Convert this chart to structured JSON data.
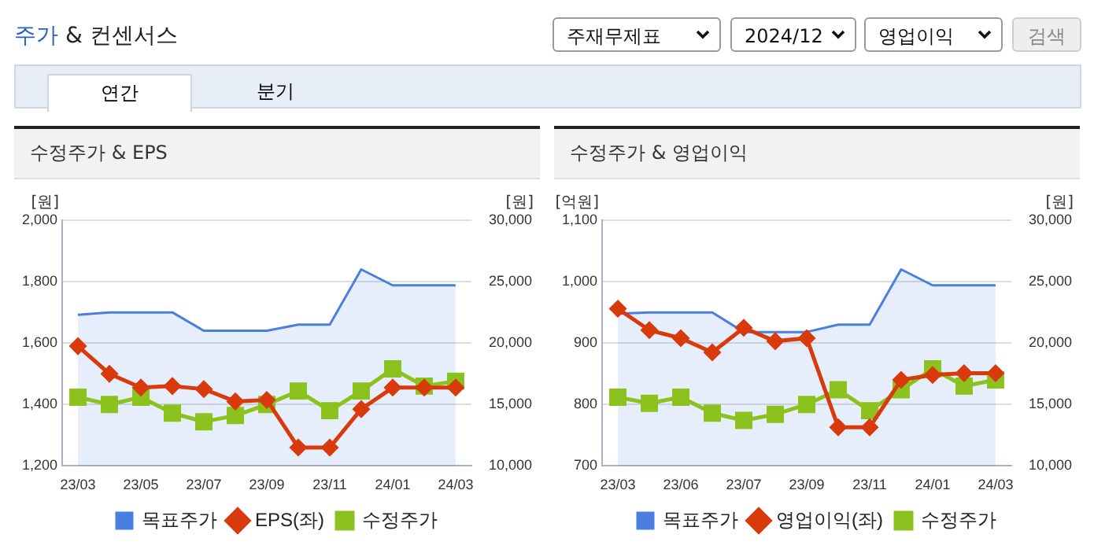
{
  "chart_data": [
    {
      "type": "other",
      "title": "주가 & 컨센서스",
      "annotations": [
        "주재무제표",
        "2024/12",
        "영업이익",
        "검색",
        "연간",
        "분기"
      ]
    },
    {
      "type": "line",
      "title": "수정주가 & EPS",
      "ylabel": "[원]",
      "y2label": "[원]",
      "categories": [
        "23/03",
        null,
        "23/05",
        null,
        "23/07",
        null,
        "23/09",
        null,
        "23/11",
        null,
        "24/01",
        null,
        "24/03"
      ],
      "ylim": [
        1200,
        2000
      ],
      "yticks": [
        {
          "value": 1200,
          "label": "1,200"
        },
        {
          "value": 1400,
          "label": "1,400"
        },
        {
          "value": 1600,
          "label": "1,600"
        },
        {
          "value": 1800,
          "label": "1,800"
        },
        {
          "value": 2000,
          "label": "2,000"
        }
      ],
      "y2lim": [
        10000,
        30000
      ],
      "y2ticks": [
        {
          "value": 10000,
          "label": "10,000"
        },
        {
          "value": 15000,
          "label": "15,000"
        },
        {
          "value": 20000,
          "label": "20,000"
        },
        {
          "value": 25000,
          "label": "25,000"
        },
        {
          "value": 30000,
          "label": "30,000"
        }
      ],
      "grid": "y",
      "legend": "bottom",
      "series": [
        {
          "name": "목표주가",
          "type": "area",
          "axis": "y2",
          "color": "#4a7fe0",
          "marker": "none",
          "values": [
            22300,
            22500,
            22500,
            22500,
            21000,
            21000,
            21000,
            21500,
            21500,
            26000,
            24700,
            24700,
            24700
          ]
        },
        {
          "name": "EPS(좌)",
          "type": "line",
          "axis": "y",
          "color": "#d83a0c",
          "marker": "diamond",
          "values": [
            1590,
            1500,
            1455,
            1460,
            1450,
            1410,
            1415,
            1260,
            1260,
            1385,
            1455,
            1455,
            1455
          ]
        },
        {
          "name": "수정주가",
          "type": "line",
          "axis": "y2",
          "color": "#8cc21e",
          "marker": "square",
          "values": [
            15600,
            15000,
            15600,
            14300,
            13600,
            14100,
            15000,
            16100,
            14500,
            16100,
            17900,
            16500,
            16900
          ]
        }
      ]
    },
    {
      "type": "line",
      "title": "수정주가 & 영업이익",
      "ylabel": "[억원]",
      "y2label": "[원]",
      "categories": [
        "23/03",
        null,
        "23/06",
        null,
        "23/07",
        null,
        "23/09",
        null,
        "23/11",
        null,
        "24/01",
        null,
        "24/03"
      ],
      "ylim": [
        700,
        1100
      ],
      "yticks": [
        700,
        800,
        900,
        {
          "value": 1000,
          "label": "1,000"
        },
        {
          "value": 1100,
          "label": "1,100"
        }
      ],
      "y2lim": [
        10000,
        30000
      ],
      "y2ticks": [
        {
          "value": 10000,
          "label": "10,000"
        },
        {
          "value": 15000,
          "label": "15,000"
        },
        {
          "value": 20000,
          "label": "20,000"
        },
        {
          "value": 25000,
          "label": "25,000"
        },
        {
          "value": 30000,
          "label": "30,000"
        }
      ],
      "grid": "y",
      "legend": "bottom",
      "series": [
        {
          "name": "목표주가",
          "type": "area",
          "axis": "y2",
          "color": "#4a7fe0",
          "marker": "none",
          "values": [
            22400,
            22500,
            22500,
            22500,
            20900,
            20900,
            20900,
            21500,
            21500,
            26000,
            24700,
            24700,
            24700
          ]
        },
        {
          "name": "영업이익(좌)",
          "type": "line",
          "axis": "y",
          "color": "#d83a0c",
          "marker": "diamond",
          "values": [
            956,
            921,
            908,
            885,
            925,
            903,
            908,
            763,
            763,
            840,
            848,
            851,
            851
          ]
        },
        {
          "name": "수정주가",
          "type": "line",
          "axis": "y2",
          "color": "#8cc21e",
          "marker": "square",
          "values": [
            15600,
            15100,
            15600,
            14300,
            13700,
            14200,
            15000,
            16200,
            14500,
            16200,
            17900,
            16500,
            17000
          ]
        }
      ]
    }
  ]
}
